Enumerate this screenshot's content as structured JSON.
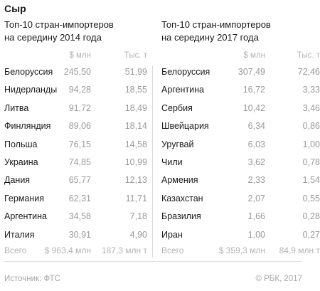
{
  "title": "Сыр",
  "source": "Источник: ФТС",
  "copyright": "© РБК, 2017",
  "chart_data": [
    {
      "type": "table",
      "title": "Топ-10 стран-импортеров\nна середину 2014 года",
      "columns": [
        "$ млн",
        "Тыс. т"
      ],
      "rows": [
        {
          "country": "Белоруссия",
          "usd": "245,50",
          "tons": "51,99"
        },
        {
          "country": "Нидерланды",
          "usd": "94,28",
          "tons": "18,55"
        },
        {
          "country": "Литва",
          "usd": "91,72",
          "tons": "18,49"
        },
        {
          "country": "Финляндия",
          "usd": "89,06",
          "tons": "18,14"
        },
        {
          "country": "Польша",
          "usd": "76,15",
          "tons": "14,58"
        },
        {
          "country": "Украина",
          "usd": "74,85",
          "tons": "10,99"
        },
        {
          "country": "Дания",
          "usd": "65,77",
          "tons": "12,13"
        },
        {
          "country": "Германия",
          "usd": "62,31",
          "tons": "11,71"
        },
        {
          "country": "Аргентина",
          "usd": "34,58",
          "tons": "7,18"
        },
        {
          "country": "Италия",
          "usd": "30,91",
          "tons": "4,90"
        }
      ],
      "total": {
        "label": "Всего",
        "usd": "$ 963,4 млн",
        "tons": "187,3 млн т"
      }
    },
    {
      "type": "table",
      "title": "Топ-10 стран-импортеров\nна середину 2017 года",
      "columns": [
        "$ млн",
        "Тыс. т"
      ],
      "rows": [
        {
          "country": "Белоруссия",
          "usd": "307,49",
          "tons": "72,46"
        },
        {
          "country": "Аргентина",
          "usd": "16,72",
          "tons": "3,33"
        },
        {
          "country": "Сербия",
          "usd": "10,42",
          "tons": "3,46"
        },
        {
          "country": "Швейцария",
          "usd": "6,34",
          "tons": "0,86"
        },
        {
          "country": "Уругвай",
          "usd": "6,03",
          "tons": "1,00"
        },
        {
          "country": "Чили",
          "usd": "3,62",
          "tons": "0,78"
        },
        {
          "country": "Армения",
          "usd": "2,33",
          "tons": "1,54"
        },
        {
          "country": "Казахстан",
          "usd": "2,07",
          "tons": "0,55"
        },
        {
          "country": "Бразилия",
          "usd": "1,66",
          "tons": "0,28"
        },
        {
          "country": "Иран",
          "usd": "1,00",
          "tons": "0,27"
        }
      ],
      "total": {
        "label": "Всего",
        "usd": "$ 359,3 млн",
        "tons": "84,9 млн т"
      }
    }
  ]
}
